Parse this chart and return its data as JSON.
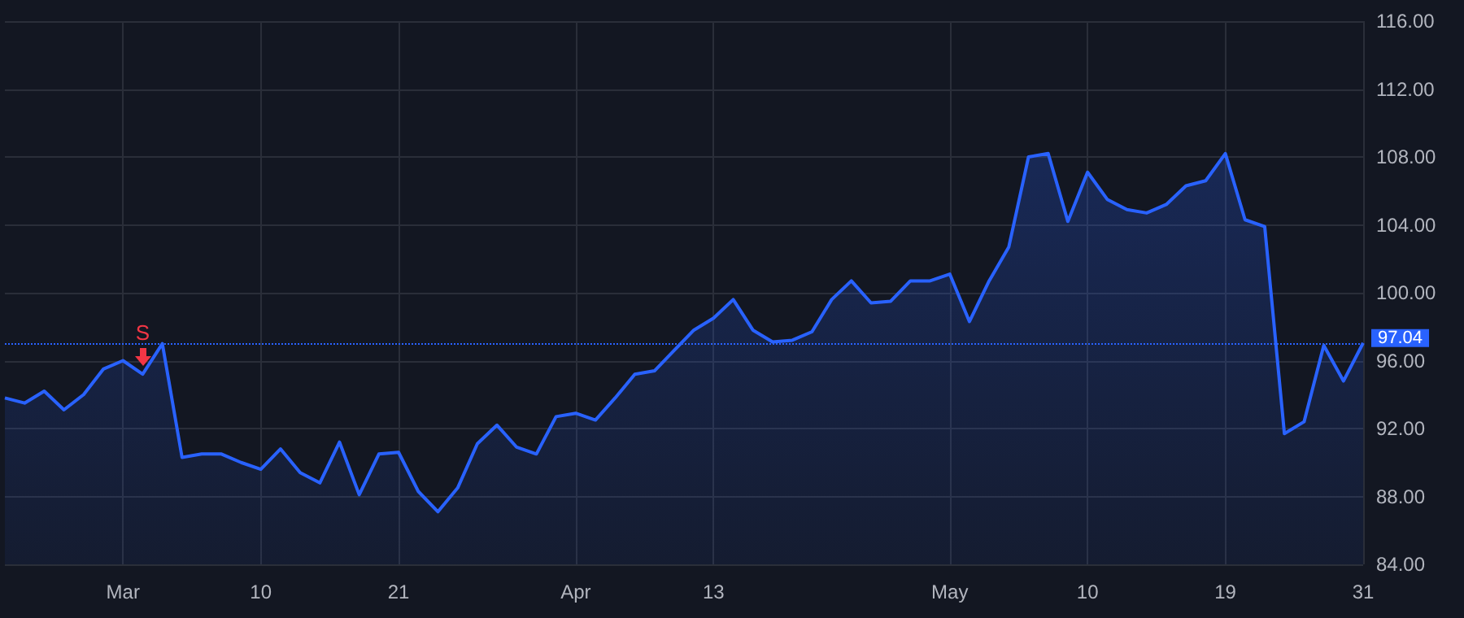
{
  "chart_data": {
    "type": "area",
    "categories": [
      null,
      null,
      null,
      null,
      null,
      null,
      "Mar",
      null,
      null,
      null,
      null,
      null,
      null,
      "10",
      null,
      null,
      null,
      null,
      null,
      null,
      "21",
      null,
      null,
      null,
      null,
      null,
      null,
      null,
      null,
      "Apr",
      null,
      null,
      null,
      null,
      null,
      null,
      "13",
      null,
      null,
      null,
      null,
      null,
      null,
      null,
      null,
      null,
      null,
      null,
      "May",
      null,
      null,
      null,
      null,
      null,
      null,
      "10",
      null,
      null,
      null,
      null,
      null,
      null,
      "19",
      null,
      null,
      null,
      null,
      null,
      null,
      "31"
    ],
    "series": [
      {
        "color": "#2962ff",
        "values": [
          93.8,
          93.5,
          94.2,
          93.1,
          94.0,
          95.5,
          96.0,
          95.2,
          97.0,
          90.3,
          90.5,
          90.5,
          90.0,
          89.6,
          90.8,
          89.4,
          88.8,
          91.2,
          88.1,
          90.5,
          90.6,
          88.3,
          87.1,
          88.5,
          91.1,
          92.2,
          90.9,
          90.5,
          92.7,
          92.9,
          92.5,
          93.8,
          95.2,
          95.4,
          96.6,
          97.8,
          98.5,
          99.6,
          97.8,
          97.1,
          97.2,
          97.7,
          99.6,
          100.7,
          99.4,
          99.5,
          100.7,
          100.7,
          101.1,
          98.3,
          100.7,
          102.7,
          108.0,
          108.2,
          104.2,
          107.1,
          105.5,
          104.9,
          104.7,
          105.2,
          106.3,
          106.6,
          108.2,
          104.3,
          103.9,
          91.7,
          92.4,
          96.9,
          94.8,
          97.04
        ]
      }
    ],
    "ylim": [
      84,
      116
    ],
    "yticks": [
      {
        "value": 84,
        "label": "84.00"
      },
      {
        "value": 88,
        "label": "88.00"
      },
      {
        "value": 92,
        "label": "92.00"
      },
      {
        "value": 96,
        "label": "96.00"
      },
      {
        "value": 100,
        "label": "100.00"
      },
      {
        "value": 104,
        "label": "104.00"
      },
      {
        "value": 108,
        "label": "108.00"
      },
      {
        "value": 112,
        "label": "112.00"
      },
      {
        "value": 116,
        "label": "116.00"
      }
    ],
    "ref_lines": [
      {
        "axis": "y",
        "value": 97.04,
        "label": "97.04",
        "color": "#2962ff",
        "line_style": "dotted"
      }
    ],
    "annotations": [
      {
        "text": "S",
        "y": 95.2
      }
    ],
    "grid": true,
    "marker": "none",
    "line_style": "solid"
  }
}
